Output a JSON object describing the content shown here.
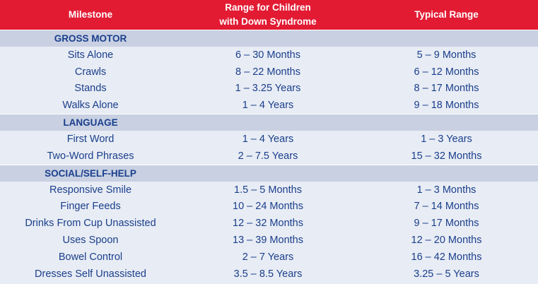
{
  "header": {
    "milestone": "Milestone",
    "range_line1": "Range for Children",
    "range_line2": "with Down Syndrome",
    "typical": "Typical Range"
  },
  "sections": [
    {
      "title": "GROSS MOTOR",
      "rows": [
        [
          "Sits Alone",
          "6 – 30 Months",
          "5 – 9 Months"
        ],
        [
          "Crawls",
          "8 – 22 Months",
          "6 – 12 Months"
        ],
        [
          "Stands",
          "1 – 3.25 Years",
          "8 – 17 Months"
        ],
        [
          "Walks Alone",
          "1 – 4 Years",
          "9 – 18 Months"
        ]
      ]
    },
    {
      "title": "LANGUAGE",
      "rows": [
        [
          "First Word",
          "1 – 4 Years",
          "1 – 3 Years"
        ],
        [
          "Two-Word Phrases",
          "2 – 7.5 Years",
          "15 – 32 Months"
        ]
      ]
    },
    {
      "title": "SOCIAL/SELF-HELP",
      "rows": [
        [
          "Responsive Smile",
          "1.5 – 5 Months",
          "1 – 3 Months"
        ],
        [
          "Finger Feeds",
          "10 – 24 Months",
          "7 – 14 Months"
        ],
        [
          "Drinks From Cup Unassisted",
          "12 – 32 Months",
          "9 – 17 Months"
        ],
        [
          "Uses Spoon",
          "13 – 39 Months",
          "12 – 20 Months"
        ],
        [
          "Bowel Control",
          "2 – 7 Years",
          "16 – 42 Months"
        ],
        [
          "Dresses Self Unassisted",
          "3.5 – 8.5 Years",
          "3.25 – 5 Years"
        ]
      ]
    }
  ]
}
